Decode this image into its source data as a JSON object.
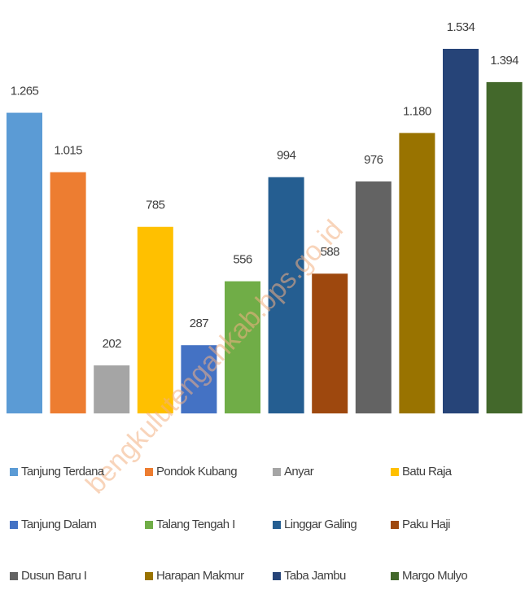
{
  "chart_data": {
    "type": "bar",
    "categories": [
      "Tanjung Terdana",
      "Pondok Kubang",
      "Anyar",
      "Batu Raja",
      "Tanjung Dalam",
      "Talang Tengah I",
      "Linggar Galing",
      "Paku Haji",
      "Dusun Baru I",
      "Harapan Makmur",
      "Taba Jambu",
      "Margo Mulyo"
    ],
    "values": [
      1265,
      1015,
      202,
      785,
      287,
      556,
      994,
      588,
      976,
      1180,
      1534,
      1394
    ],
    "value_labels": [
      "1.265",
      "1.015",
      "202",
      "785",
      "287",
      "556",
      "994",
      "588",
      "976",
      "1.180",
      "1.534",
      "1.394"
    ],
    "colors": [
      "#5b9bd5",
      "#ed7d31",
      "#a5a5a5",
      "#ffc000",
      "#4472c4",
      "#70ad47",
      "#255e91",
      "#9e480e",
      "#636363",
      "#997300",
      "#264478",
      "#43682b"
    ],
    "watermark": "bengkulutengahkab.bps.go.id"
  }
}
